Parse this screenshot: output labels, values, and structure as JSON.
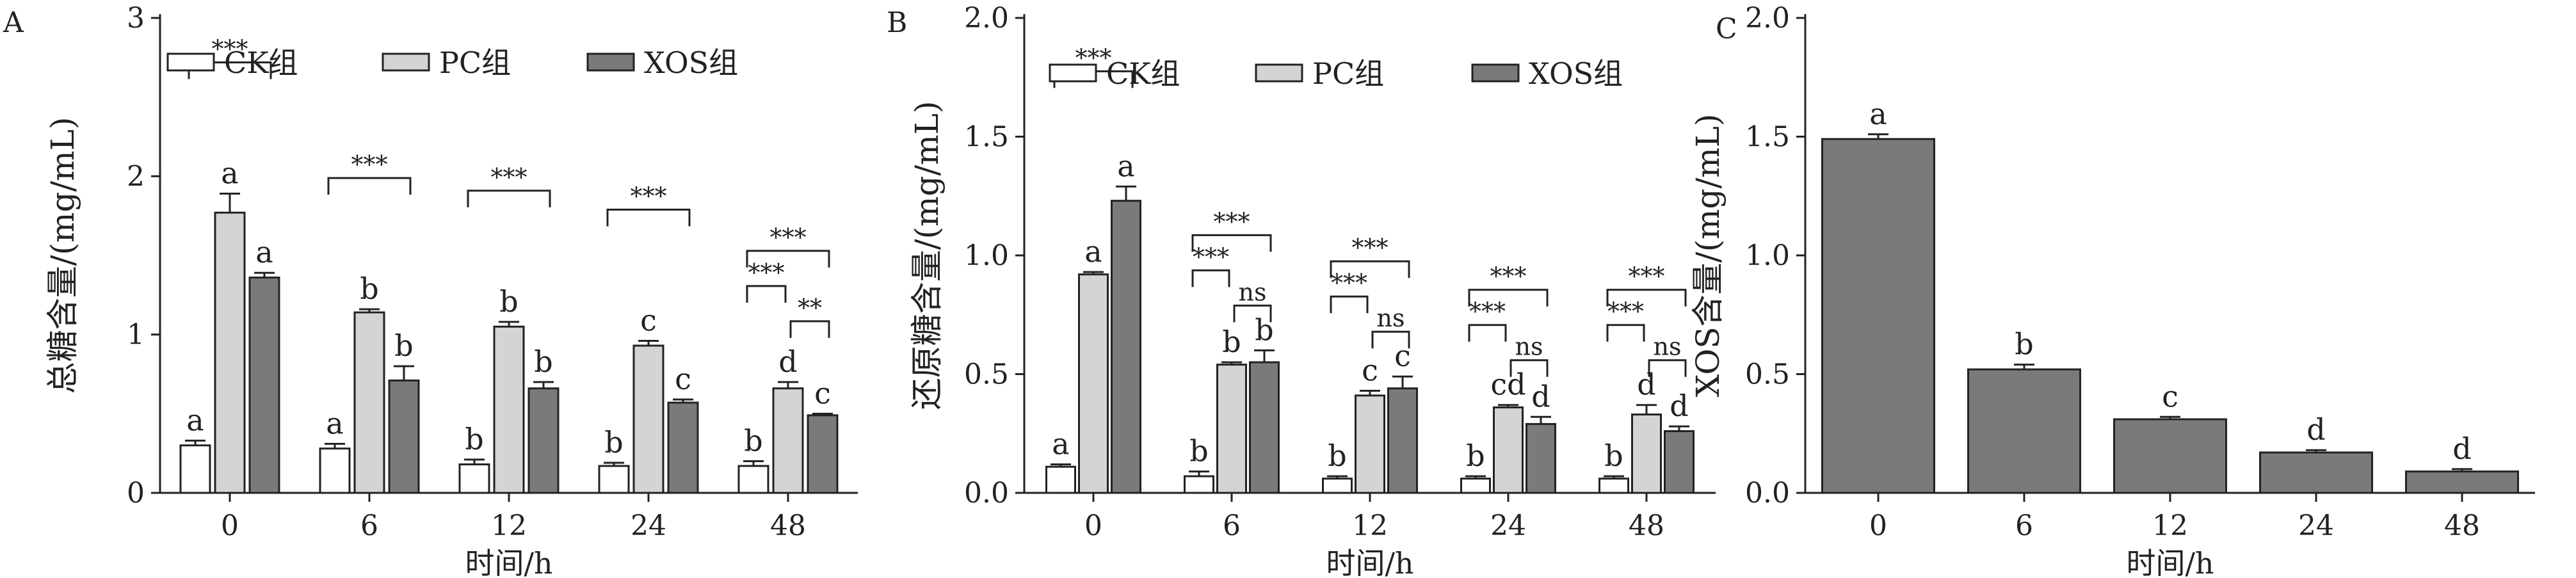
{
  "chart_data": [
    {
      "type": "bar",
      "panel_label": "A",
      "categories": [
        "0",
        "6",
        "12",
        "24",
        "48"
      ],
      "xlabel": "时间/h",
      "ylabel": "总糖含量/(mg/mL)",
      "ylim": [
        0,
        3
      ],
      "yticks": [
        "0",
        "1",
        "2",
        "3"
      ],
      "series": [
        {
          "name": "CK组",
          "color": "#ffffff",
          "values": [
            0.3,
            0.28,
            0.18,
            0.17,
            0.17
          ],
          "errors": [
            0.03,
            0.03,
            0.03,
            0.02,
            0.03
          ],
          "letters": [
            "a",
            "a",
            "b",
            "b",
            "b"
          ]
        },
        {
          "name": "PC组",
          "color": "#d4d4d4",
          "values": [
            1.77,
            1.14,
            1.05,
            0.93,
            0.66
          ],
          "errors": [
            0.12,
            0.02,
            0.03,
            0.03,
            0.04
          ],
          "letters": [
            "a",
            "b",
            "b",
            "c",
            "d"
          ]
        },
        {
          "name": "XOS组",
          "color": "#7a7a7a",
          "values": [
            1.36,
            0.71,
            0.66,
            0.57,
            0.49
          ],
          "errors": [
            0.03,
            0.09,
            0.04,
            0.02,
            0.01
          ],
          "letters": [
            "a",
            "b",
            "b",
            "c",
            "c"
          ]
        }
      ],
      "significance": [
        {
          "category": 0,
          "from": 0,
          "to": 2,
          "label": "***"
        },
        {
          "category": 1,
          "from": 0,
          "to": 2,
          "label": "***"
        },
        {
          "category": 2,
          "from": 0,
          "to": 2,
          "label": "***"
        },
        {
          "category": 3,
          "from": 0,
          "to": 2,
          "label": "***"
        },
        {
          "category": 4,
          "from": 0,
          "to": 2,
          "label": "***"
        },
        {
          "category": 4,
          "from": 0,
          "to": 1,
          "label": "***"
        },
        {
          "category": 4,
          "from": 1,
          "to": 2,
          "label": "**"
        }
      ]
    },
    {
      "type": "bar",
      "panel_label": "B",
      "categories": [
        "0",
        "6",
        "12",
        "24",
        "48"
      ],
      "xlabel": "时间/h",
      "ylabel": "还原糖含量/(mg/mL)",
      "ylim": [
        0,
        2
      ],
      "yticks": [
        "0.0",
        "0.5",
        "1.0",
        "1.5",
        "2.0"
      ],
      "series": [
        {
          "name": "CK组",
          "color": "#ffffff",
          "values": [
            0.11,
            0.07,
            0.06,
            0.06,
            0.06
          ],
          "errors": [
            0.01,
            0.02,
            0.01,
            0.01,
            0.01
          ],
          "letters": [
            "a",
            "b",
            "b",
            "b",
            "b"
          ]
        },
        {
          "name": "PC组",
          "color": "#d4d4d4",
          "values": [
            0.92,
            0.54,
            0.41,
            0.36,
            0.33
          ],
          "errors": [
            0.01,
            0.01,
            0.02,
            0.01,
            0.04
          ],
          "letters": [
            "a",
            "b",
            "c",
            "cd",
            "d"
          ]
        },
        {
          "name": "XOS组",
          "color": "#7a7a7a",
          "values": [
            1.23,
            0.55,
            0.44,
            0.29,
            0.26
          ],
          "errors": [
            0.06,
            0.05,
            0.05,
            0.03,
            0.02
          ],
          "letters": [
            "a",
            "b",
            "c",
            "d",
            "d"
          ]
        }
      ],
      "significance": [
        {
          "category": 0,
          "from": 0,
          "to": 2,
          "label": "***"
        },
        {
          "category": 1,
          "from": 0,
          "to": 2,
          "label": "***"
        },
        {
          "category": 1,
          "from": 0,
          "to": 1,
          "label": "***"
        },
        {
          "category": 1,
          "from": 1,
          "to": 2,
          "label": "ns"
        },
        {
          "category": 2,
          "from": 0,
          "to": 2,
          "label": "***"
        },
        {
          "category": 2,
          "from": 0,
          "to": 1,
          "label": "***"
        },
        {
          "category": 2,
          "from": 1,
          "to": 2,
          "label": "ns"
        },
        {
          "category": 3,
          "from": 0,
          "to": 2,
          "label": "***"
        },
        {
          "category": 3,
          "from": 0,
          "to": 1,
          "label": "***"
        },
        {
          "category": 3,
          "from": 1,
          "to": 2,
          "label": "ns"
        },
        {
          "category": 4,
          "from": 0,
          "to": 2,
          "label": "***"
        },
        {
          "category": 4,
          "from": 0,
          "to": 1,
          "label": "***"
        },
        {
          "category": 4,
          "from": 1,
          "to": 2,
          "label": "ns"
        }
      ]
    },
    {
      "type": "bar",
      "panel_label": "C",
      "categories": [
        "0",
        "6",
        "12",
        "24",
        "48"
      ],
      "xlabel": "时间/h",
      "ylabel": "XOS含量/(mg/mL)",
      "ylim": [
        0,
        2
      ],
      "yticks": [
        "0.0",
        "0.5",
        "1.0",
        "1.5",
        "2.0"
      ],
      "series": [
        {
          "name": "",
          "color": "#7a7a7a",
          "values": [
            1.49,
            0.52,
            0.31,
            0.17,
            0.09
          ],
          "errors": [
            0.02,
            0.02,
            0.01,
            0.01,
            0.01
          ],
          "letters": [
            "a",
            "b",
            "c",
            "d",
            "d"
          ]
        }
      ],
      "significance": []
    }
  ]
}
